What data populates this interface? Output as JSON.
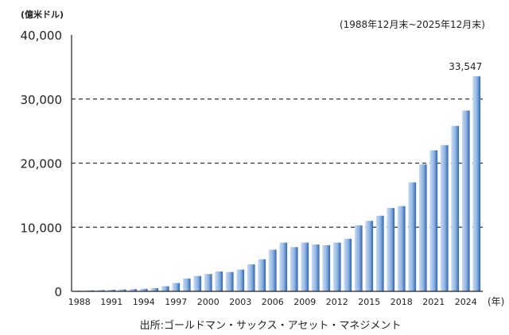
{
  "chart_data": {
    "type": "bar",
    "unit_label": "(億米ドル)",
    "period_label": "(1988年12月末~2025年12月末)",
    "x_unit_label": "(年)",
    "source": "出所:ゴールドマン・サックス・アセット・マネジメント",
    "categories": [
      "1988",
      "1989",
      "1990",
      "1991",
      "1992",
      "1993",
      "1994",
      "1995",
      "1996",
      "1997",
      "1998",
      "1999",
      "2000",
      "2001",
      "2002",
      "2003",
      "2004",
      "2005",
      "2006",
      "2007",
      "2008",
      "2009",
      "2010",
      "2011",
      "2012",
      "2013",
      "2014",
      "2015",
      "2016",
      "2017",
      "2018",
      "2019",
      "2020",
      "2021",
      "2022",
      "2023",
      "2024",
      "2025"
    ],
    "x_tick_labels": [
      "1988",
      "1991",
      "1994",
      "1997",
      "2000",
      "2003",
      "2006",
      "2009",
      "2012",
      "2015",
      "2018",
      "2021",
      "2024"
    ],
    "values": [
      80,
      150,
      200,
      250,
      300,
      350,
      400,
      500,
      800,
      1300,
      2000,
      2400,
      2700,
      3100,
      3000,
      3400,
      4200,
      5000,
      6500,
      7600,
      6900,
      7600,
      7300,
      7200,
      7600,
      8200,
      10300,
      11000,
      11800,
      13000,
      13300,
      17000,
      19800,
      22000,
      22800,
      25800,
      28200,
      33547
    ],
    "y_ticks": [
      "0",
      "10,000",
      "20,000",
      "30,000",
      "40,000"
    ],
    "ylim": [
      0,
      40000
    ],
    "annotation": "33,547",
    "grid": "dashed horizontal",
    "colors": {
      "bar_dark": "#2f66b0",
      "bar_light": "#c8dcf3",
      "grid": "#333333",
      "text": "#222222"
    }
  }
}
